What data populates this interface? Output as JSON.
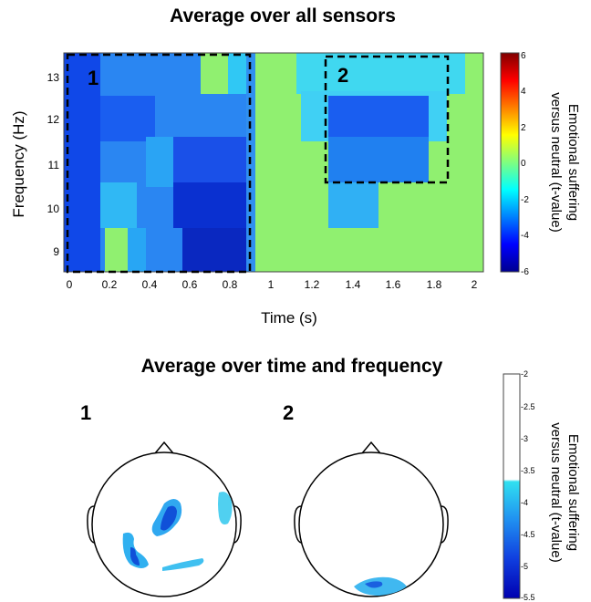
{
  "top_title": "Average over all sensors",
  "bottom_title": "Average over time and frequency",
  "heatmap": {
    "ylabel": "Frequency (Hz)",
    "xlabel": "Time (s)",
    "xticks": [
      "0",
      "0.2",
      "0.4",
      "0.6",
      "0.8",
      "1",
      "1.2",
      "1.4",
      "1.6",
      "1.8",
      "2"
    ],
    "yticks": [
      "13",
      "12",
      "11",
      "10",
      "9"
    ],
    "box1_label": "1",
    "box2_label": "2"
  },
  "colorbar1": {
    "label_line1": "Emotional suffering",
    "label_line2": "versus neutral (t-value)",
    "ticks": [
      "6",
      "4",
      "2",
      "0",
      "-2",
      "-4",
      "-6"
    ],
    "range": [
      -6,
      6
    ]
  },
  "colorbar2": {
    "label_line1": "Emotional suffering",
    "label_line2": "versus neutral (t-value)",
    "ticks": [
      "-2",
      "-2.5",
      "-3",
      "-3.5",
      "-4",
      "-4.5",
      "-5",
      "-5.5"
    ],
    "range": [
      -5.5,
      -2
    ]
  },
  "topo": {
    "label1": "1",
    "label2": "2"
  },
  "colors": {
    "background_green": "#90f070",
    "blue_dark": "#1030e0",
    "blue_mid": "#2080ff",
    "cyan": "#20d0f0"
  }
}
